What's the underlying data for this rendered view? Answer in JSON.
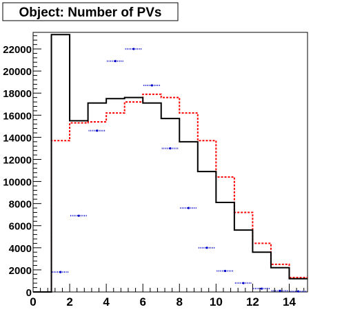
{
  "chart_data": {
    "type": "histogram",
    "title": "Object: Number of PVs",
    "xlabel": "",
    "ylabel": "",
    "xlim": [
      0,
      15
    ],
    "ylim": [
      0,
      23500
    ],
    "x_ticks": [
      0,
      2,
      4,
      6,
      8,
      10,
      12,
      14
    ],
    "y_ticks": [
      0,
      2000,
      4000,
      6000,
      8000,
      10000,
      12000,
      14000,
      16000,
      18000,
      20000,
      22000
    ],
    "bin_edges": [
      0,
      1,
      2,
      3,
      4,
      5,
      6,
      7,
      8,
      9,
      10,
      11,
      12,
      13,
      14,
      15
    ],
    "series": [
      {
        "style": "solid",
        "color": "#000000",
        "values": [
          0,
          23300,
          15500,
          17100,
          17500,
          17600,
          17100,
          15700,
          13600,
          10900,
          8100,
          5600,
          3600,
          2200,
          1200
        ]
      },
      {
        "style": "dashed",
        "color": "#ff0000",
        "values": [
          0,
          13700,
          15300,
          15400,
          16200,
          17200,
          17900,
          17600,
          16200,
          13700,
          10400,
          7200,
          4400,
          2500,
          1300
        ]
      },
      {
        "style": "dotted-markers",
        "color": "#0000cc",
        "values": [
          0,
          1800,
          6900,
          14600,
          20900,
          22000,
          18700,
          13000,
          7600,
          4000,
          1900,
          800,
          300,
          100,
          50
        ]
      }
    ]
  }
}
